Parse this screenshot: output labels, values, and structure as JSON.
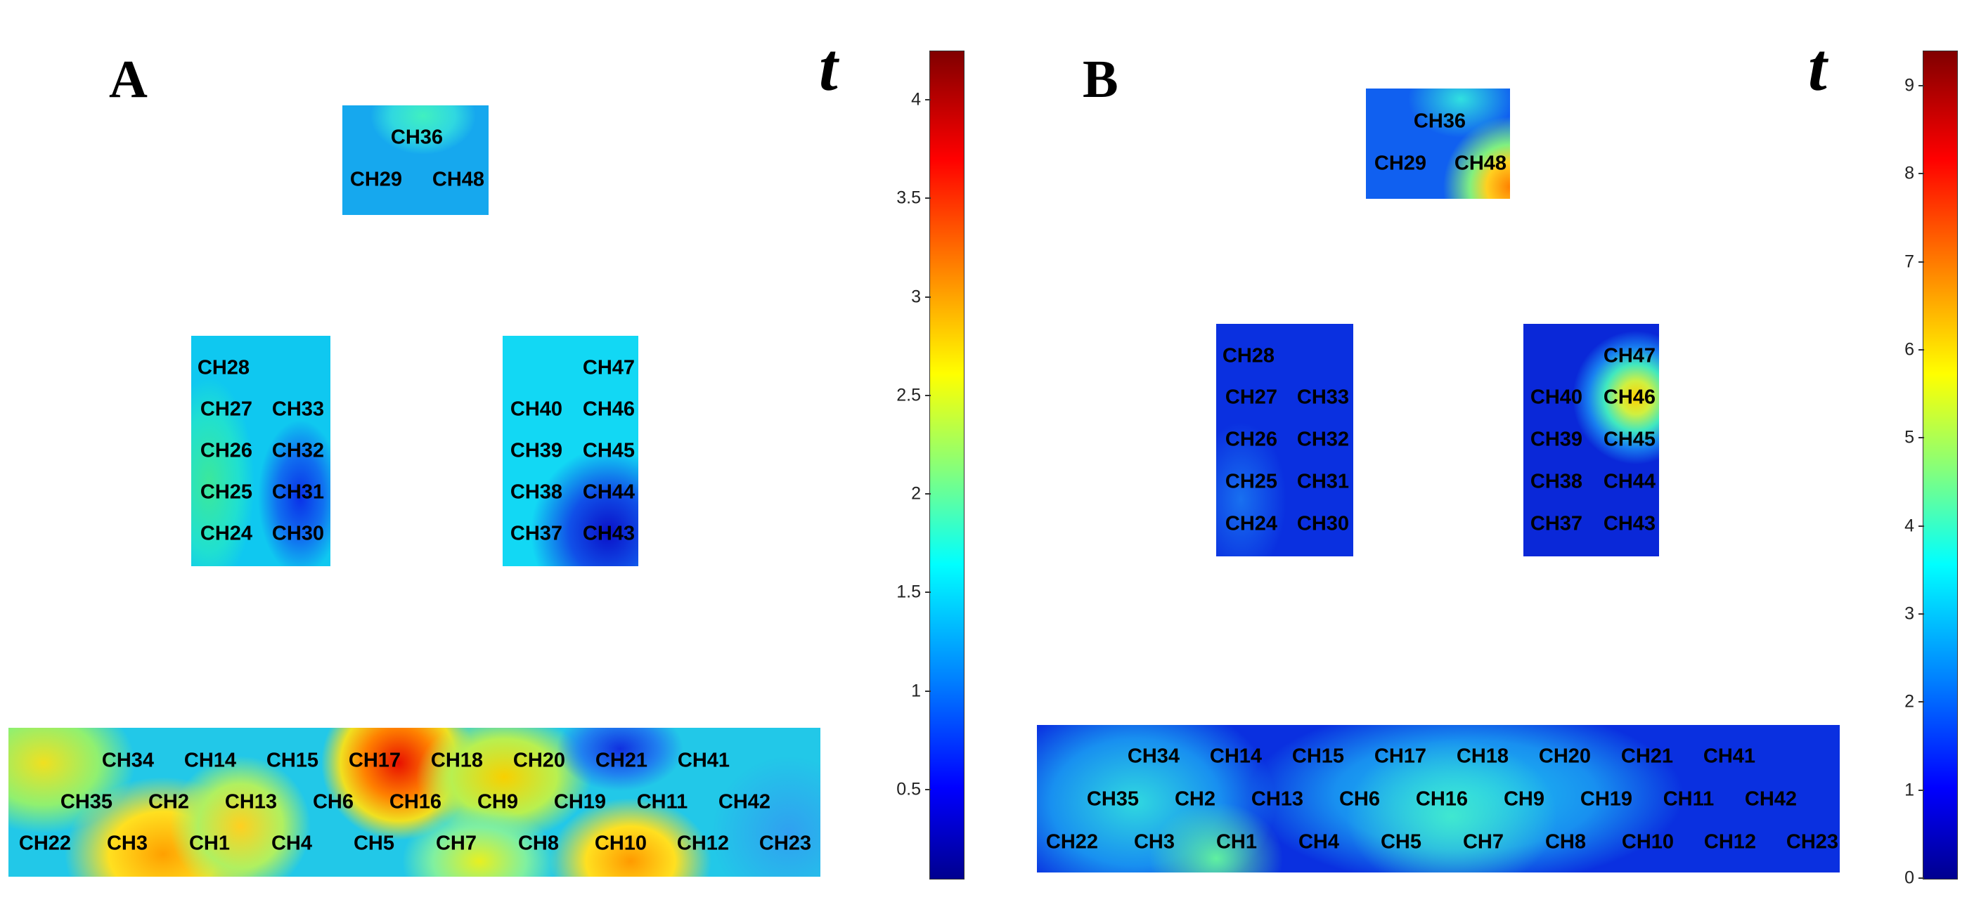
{
  "panels": [
    {
      "id": "A",
      "label": "A",
      "colorbar_title": "t",
      "colorbar_ticks": [
        "4",
        "3.5",
        "3",
        "2.5",
        "2",
        "1.5",
        "1",
        "0.5"
      ],
      "colorbar_range": [
        0.05,
        4.25
      ],
      "groups": {
        "top": [
          "CH36",
          "CH29",
          "CH48"
        ],
        "left": [
          "CH28",
          "CH27",
          "CH33",
          "CH26",
          "CH32",
          "CH25",
          "CH31",
          "CH24",
          "CH30"
        ],
        "right": [
          "CH47",
          "CH40",
          "CH46",
          "CH39",
          "CH45",
          "CH38",
          "CH44",
          "CH37",
          "CH43"
        ],
        "bottom_row1": [
          "CH34",
          "CH14",
          "CH15",
          "CH17",
          "CH18",
          "CH20",
          "CH21",
          "CH41"
        ],
        "bottom_row2": [
          "CH35",
          "CH2",
          "CH13",
          "CH6",
          "CH16",
          "CH9",
          "CH19",
          "CH11",
          "CH42"
        ],
        "bottom_row3": [
          "CH22",
          "CH3",
          "CH1",
          "CH4",
          "CH5",
          "CH7",
          "CH8",
          "CH10",
          "CH12",
          "CH23"
        ]
      }
    },
    {
      "id": "B",
      "label": "B",
      "colorbar_title": "t",
      "colorbar_ticks": [
        "9",
        "8",
        "7",
        "6",
        "5",
        "4",
        "3",
        "2",
        "1",
        "0"
      ],
      "colorbar_range": [
        0,
        9.4
      ],
      "groups": {
        "top": [
          "CH36",
          "CH29",
          "CH48"
        ],
        "left": [
          "CH28",
          "CH27",
          "CH33",
          "CH26",
          "CH32",
          "CH25",
          "CH31",
          "CH24",
          "CH30"
        ],
        "right": [
          "CH47",
          "CH40",
          "CH46",
          "CH39",
          "CH45",
          "CH38",
          "CH44",
          "CH37",
          "CH43"
        ],
        "bottom_row1": [
          "CH34",
          "CH14",
          "CH15",
          "CH17",
          "CH18",
          "CH20",
          "CH21",
          "CH41"
        ],
        "bottom_row2": [
          "CH35",
          "CH2",
          "CH13",
          "CH6",
          "CH16",
          "CH9",
          "CH19",
          "CH11",
          "CH42"
        ],
        "bottom_row3": [
          "CH22",
          "CH3",
          "CH1",
          "CH4",
          "CH5",
          "CH7",
          "CH8",
          "CH10",
          "CH12",
          "CH23"
        ]
      }
    }
  ],
  "colors": {
    "jet": [
      "#00008f",
      "#0000ff",
      "#0080ff",
      "#00ffff",
      "#80ff80",
      "#ffff00",
      "#ff8000",
      "#ff0000",
      "#800000"
    ]
  }
}
